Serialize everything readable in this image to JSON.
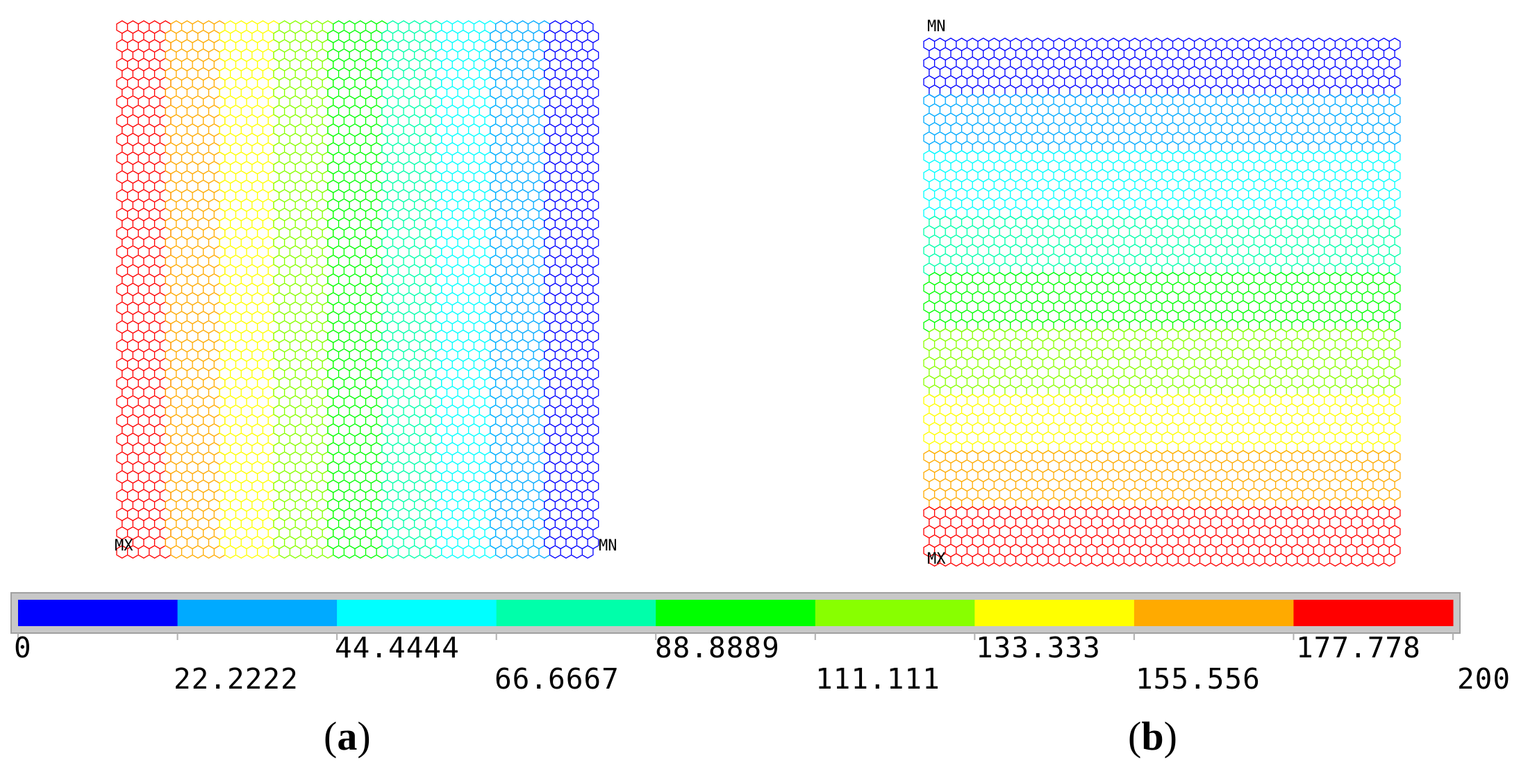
{
  "legend": {
    "colors": [
      "#0000FF",
      "#00AAFF",
      "#00FFFF",
      "#00FFAA",
      "#00FF00",
      "#88FF00",
      "#FFFF00",
      "#FFAA00",
      "#FF0000"
    ],
    "tick_values": [
      "0",
      "22.2222",
      "44.4444",
      "66.6667",
      "88.8889",
      "111.111",
      "133.333",
      "155.556",
      "177.778",
      "200"
    ]
  },
  "panel_a": {
    "label_open": "(",
    "label_letter": "a",
    "label_close": ")",
    "max_marker": "MX",
    "min_marker": "MN",
    "gradient_direction": "left-to-right",
    "band_order": [
      "#FF0000",
      "#FFAA00",
      "#FFFF00",
      "#88FF00",
      "#00FF00",
      "#00FFAA",
      "#00FFFF",
      "#00AAFF",
      "#0000FF"
    ]
  },
  "panel_b": {
    "label_open": "(",
    "label_letter": "b",
    "label_close": ")",
    "max_marker": "MX",
    "min_marker": "MN",
    "gradient_direction": "top-to-bottom",
    "band_order": [
      "#0000FF",
      "#00AAFF",
      "#00FFFF",
      "#00FFAA",
      "#00FF00",
      "#88FF00",
      "#FFFF00",
      "#FFAA00",
      "#FF0000"
    ]
  }
}
